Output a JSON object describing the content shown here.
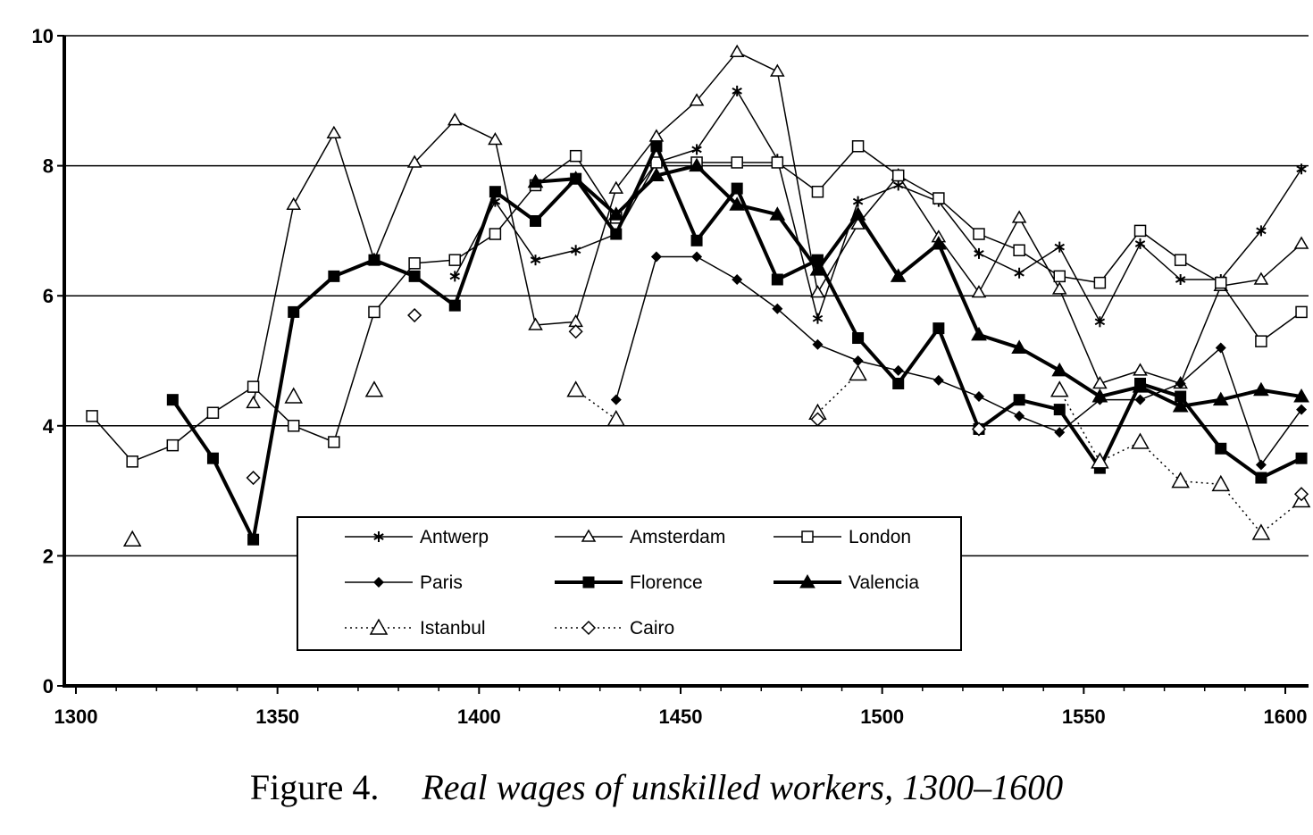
{
  "caption": {
    "figure_label": "Figure 4.",
    "title": "Real wages of unskilled workers, 1300–1600"
  },
  "chart_data": {
    "type": "line",
    "title": "Real wages of unskilled workers, 1300–1600",
    "xlabel": "",
    "ylabel": "",
    "xlim": [
      1300,
      1600
    ],
    "ylim": [
      0,
      10
    ],
    "x_ticks": [
      1300,
      1350,
      1400,
      1450,
      1500,
      1550,
      1600
    ],
    "y_ticks": [
      0,
      2,
      4,
      6,
      8,
      10
    ],
    "grid": "horizontal",
    "legend_position": "bottom-center",
    "series": [
      {
        "name": "Antwerp",
        "marker": "star",
        "line": "thin",
        "points": [
          [
            1394,
            6.3
          ],
          [
            1404,
            7.45
          ],
          [
            1414,
            6.55
          ],
          [
            1424,
            6.7
          ],
          [
            1434,
            6.95
          ],
          [
            1444,
            8.05
          ],
          [
            1454,
            8.25
          ],
          [
            1464,
            9.15
          ],
          [
            1474,
            8.1
          ],
          [
            1484,
            5.65
          ],
          [
            1494,
            7.45
          ],
          [
            1504,
            7.7
          ],
          [
            1514,
            7.45
          ],
          [
            1524,
            6.65
          ],
          [
            1534,
            6.35
          ],
          [
            1544,
            6.75
          ],
          [
            1554,
            5.6
          ],
          [
            1564,
            6.8
          ],
          [
            1574,
            6.25
          ],
          [
            1584,
            6.25
          ],
          [
            1594,
            7.0
          ],
          [
            1604,
            7.95
          ]
        ]
      },
      {
        "name": "Amsterdam",
        "marker": "triangle-open",
        "line": "thin",
        "points": [
          [
            1344,
            4.35
          ],
          [
            1354,
            7.4
          ],
          [
            1364,
            8.5
          ],
          [
            1374,
            6.55
          ],
          [
            1384,
            8.05
          ],
          [
            1394,
            8.7
          ],
          [
            1404,
            8.4
          ],
          [
            1414,
            5.55
          ],
          [
            1424,
            5.6
          ],
          [
            1434,
            7.65
          ],
          [
            1444,
            8.45
          ],
          [
            1454,
            9.0
          ],
          [
            1464,
            9.75
          ],
          [
            1474,
            9.45
          ],
          [
            1484,
            6.05
          ],
          [
            1494,
            7.1
          ],
          [
            1504,
            7.85
          ],
          [
            1514,
            6.9
          ],
          [
            1524,
            6.05
          ],
          [
            1534,
            7.2
          ],
          [
            1544,
            6.1
          ],
          [
            1554,
            4.65
          ],
          [
            1564,
            4.85
          ],
          [
            1574,
            4.65
          ],
          [
            1584,
            6.15
          ],
          [
            1594,
            6.25
          ],
          [
            1604,
            6.8
          ]
        ]
      },
      {
        "name": "London",
        "marker": "square-open",
        "line": "thin",
        "points": [
          [
            1304,
            4.15
          ],
          [
            1314,
            3.45
          ],
          [
            1324,
            3.7
          ],
          [
            1334,
            4.2
          ],
          [
            1344,
            4.6
          ],
          [
            1354,
            4.0
          ],
          [
            1364,
            3.75
          ],
          [
            1374,
            5.75
          ],
          [
            1384,
            6.5
          ],
          [
            1394,
            6.55
          ],
          [
            1404,
            6.95
          ],
          [
            1414,
            7.7
          ],
          [
            1424,
            8.15
          ],
          [
            1434,
            7.2
          ],
          [
            1444,
            8.05
          ],
          [
            1454,
            8.05
          ],
          [
            1464,
            8.05
          ],
          [
            1474,
            8.05
          ],
          [
            1484,
            7.6
          ],
          [
            1494,
            8.3
          ],
          [
            1504,
            7.85
          ],
          [
            1514,
            7.5
          ],
          [
            1524,
            6.95
          ],
          [
            1534,
            6.7
          ],
          [
            1544,
            6.3
          ],
          [
            1554,
            6.2
          ],
          [
            1564,
            7.0
          ],
          [
            1574,
            6.55
          ],
          [
            1584,
            6.2
          ],
          [
            1594,
            5.3
          ],
          [
            1604,
            5.75
          ]
        ]
      },
      {
        "name": "Paris",
        "marker": "diamond-filled",
        "line": "thin",
        "points": [
          [
            1434,
            4.4
          ],
          [
            1444,
            6.6
          ],
          [
            1454,
            6.6
          ],
          [
            1464,
            6.25
          ],
          [
            1474,
            5.8
          ],
          [
            1484,
            5.25
          ],
          [
            1494,
            5.0
          ],
          [
            1504,
            4.85
          ],
          [
            1514,
            4.7
          ],
          [
            1524,
            4.45
          ],
          [
            1534,
            4.15
          ],
          [
            1544,
            3.9
          ],
          [
            1554,
            4.4
          ],
          [
            1564,
            4.4
          ],
          [
            1574,
            4.65
          ],
          [
            1584,
            5.2
          ],
          [
            1594,
            3.4
          ],
          [
            1604,
            4.25
          ]
        ]
      },
      {
        "name": "Florence",
        "marker": "square-filled",
        "line": "thick",
        "points": [
          [
            1324,
            4.4
          ],
          [
            1334,
            3.5
          ],
          [
            1344,
            2.25
          ],
          [
            1354,
            5.75
          ],
          [
            1364,
            6.3
          ],
          [
            1374,
            6.55
          ],
          [
            1384,
            6.3
          ],
          [
            1394,
            5.85
          ],
          [
            1404,
            7.6
          ],
          [
            1414,
            7.15
          ],
          [
            1424,
            7.8
          ],
          [
            1434,
            6.95
          ],
          [
            1444,
            8.3
          ],
          [
            1454,
            6.85
          ],
          [
            1464,
            7.65
          ],
          [
            1474,
            6.25
          ],
          [
            1484,
            6.55
          ],
          [
            1494,
            5.35
          ],
          [
            1504,
            4.65
          ],
          [
            1514,
            5.5
          ],
          [
            1524,
            3.95
          ],
          [
            1534,
            4.4
          ],
          [
            1544,
            4.25
          ],
          [
            1554,
            3.35
          ],
          [
            1564,
            4.65
          ],
          [
            1574,
            4.45
          ],
          [
            1584,
            3.65
          ],
          [
            1594,
            3.2
          ],
          [
            1604,
            3.5
          ]
        ]
      },
      {
        "name": "Valencia",
        "marker": "triangle-filled",
        "line": "thick",
        "points": [
          [
            1414,
            7.75
          ],
          [
            1424,
            7.8
          ],
          [
            1434,
            7.25
          ],
          [
            1444,
            7.85
          ],
          [
            1454,
            8.0
          ],
          [
            1464,
            7.4
          ],
          [
            1474,
            7.25
          ],
          [
            1484,
            6.4
          ],
          [
            1494,
            7.25
          ],
          [
            1504,
            6.3
          ],
          [
            1514,
            6.8
          ],
          [
            1524,
            5.4
          ],
          [
            1534,
            5.2
          ],
          [
            1544,
            4.85
          ],
          [
            1554,
            4.45
          ],
          [
            1564,
            4.6
          ],
          [
            1574,
            4.3
          ],
          [
            1584,
            4.4
          ],
          [
            1594,
            4.55
          ],
          [
            1604,
            4.45
          ]
        ]
      },
      {
        "name": "Istanbul",
        "marker": "triangle-open-large",
        "line": "dotted",
        "points": [
          [
            1314,
            2.25
          ],
          [
            1354,
            4.45
          ],
          [
            1374,
            4.55
          ],
          [
            1424,
            4.55
          ],
          [
            1434,
            4.1
          ],
          [
            1484,
            4.2
          ],
          [
            1494,
            4.8
          ],
          [
            1544,
            4.55
          ],
          [
            1554,
            3.45
          ],
          [
            1564,
            3.75
          ],
          [
            1574,
            3.15
          ],
          [
            1584,
            3.1
          ],
          [
            1594,
            2.35
          ],
          [
            1604,
            2.85
          ]
        ],
        "segments": [
          [
            1424,
            1434
          ],
          [
            1484,
            1494
          ],
          [
            1544,
            1604
          ]
        ]
      },
      {
        "name": "Cairo",
        "marker": "diamond-open",
        "line": "dotted",
        "points": [
          [
            1344,
            3.2
          ],
          [
            1384,
            5.7
          ],
          [
            1424,
            5.45
          ],
          [
            1484,
            4.1
          ],
          [
            1524,
            3.95
          ],
          [
            1604,
            2.95
          ]
        ],
        "segments": []
      }
    ]
  }
}
